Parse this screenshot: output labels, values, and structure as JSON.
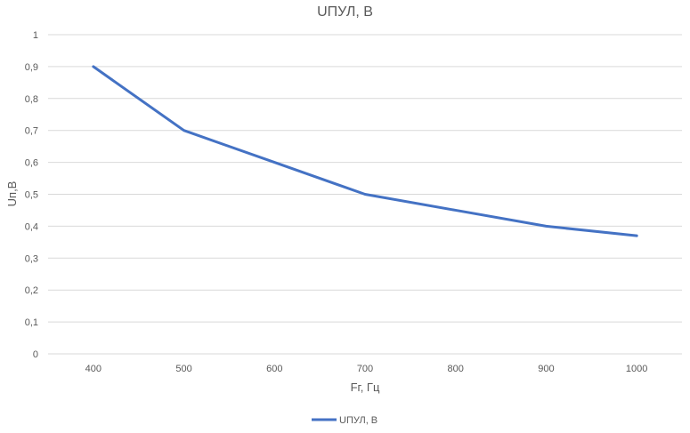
{
  "chart_data": {
    "type": "line",
    "title": "UПУЛ, В",
    "xlabel": "Fг, Гц",
    "ylabel": "Uп,В",
    "categories": [
      "400",
      "500",
      "600",
      "700",
      "800",
      "900",
      "1000"
    ],
    "series": [
      {
        "name": "UПУЛ, В",
        "color": "#4472c4",
        "values": [
          0.9,
          0.7,
          0.6,
          0.5,
          0.45,
          0.4,
          0.37
        ]
      }
    ],
    "ylim": [
      0,
      1
    ],
    "yticks": [
      "0",
      "0,1",
      "0,2",
      "0,3",
      "0,4",
      "0,5",
      "0,6",
      "0,7",
      "0,8",
      "0,9",
      "1"
    ],
    "grid": true,
    "legend_position": "bottom"
  }
}
